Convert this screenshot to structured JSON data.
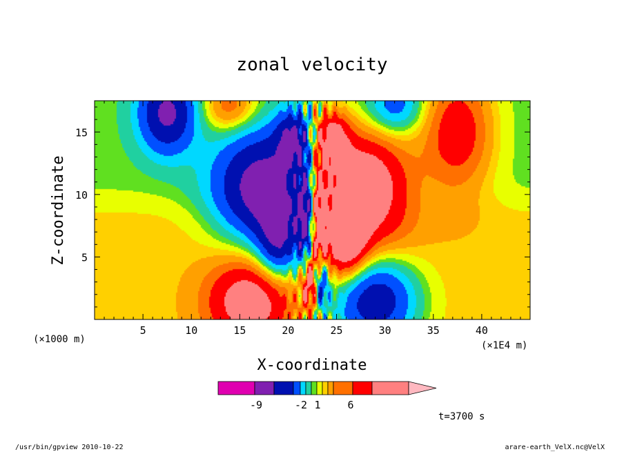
{
  "chart_data": {
    "type": "heatmap",
    "title": "zonal velocity",
    "xlabel": "X-coordinate",
    "ylabel": "Z-coordinate",
    "x_unit_left": "(×1000 m)",
    "x_unit_right": "(×1E4 m)",
    "x_range": [
      0,
      45
    ],
    "y_range": [
      0,
      17.5
    ],
    "x_ticks": [
      "5",
      "10",
      "15",
      "20",
      "25",
      "30",
      "35",
      "40"
    ],
    "x_tick_values": [
      5,
      10,
      15,
      20,
      25,
      30,
      35,
      40
    ],
    "y_ticks": [
      "5",
      "10",
      "15"
    ],
    "y_tick_values": [
      5,
      10,
      15
    ],
    "colorbar_labels": [
      "-9",
      "-2",
      "1",
      "6"
    ],
    "colorbar_colors": [
      "#e000b0",
      "#8020b0",
      "#0010b0",
      "#0050ff",
      "#00d8ff",
      "#20d0a0",
      "#60e020",
      "#e8ff00",
      "#ffd000",
      "#ffa000",
      "#ff7000",
      "#ff0000",
      "#ff8080",
      "#ffb8c0"
    ],
    "background_color": "#e8ff00",
    "fields": [
      {
        "cx": 7.5,
        "cz": 16.5,
        "sx": 2.0,
        "sz": 2.2,
        "amp": -6
      },
      {
        "cx": 37.5,
        "cz": 15.0,
        "sx": 2.6,
        "sz": 3.5,
        "amp": 4
      },
      {
        "cx": 17.5,
        "cz": 10.5,
        "sx": 3.5,
        "sz": 3.2,
        "amp": -7
      },
      {
        "cx": 27.5,
        "cz": 10.5,
        "sx": 3.5,
        "sz": 3.2,
        "amp": 7
      },
      {
        "cx": 16.0,
        "cz": 1.5,
        "sx": 3.0,
        "sz": 2.4,
        "amp": 5
      },
      {
        "cx": 29.0,
        "cz": 1.5,
        "sx": 3.0,
        "sz": 2.4,
        "amp": -6
      },
      {
        "cx": 14.0,
        "cz": 17.0,
        "sx": 2.0,
        "sz": 1.5,
        "amp": 3
      },
      {
        "cx": 31.0,
        "cz": 17.0,
        "sx": 2.0,
        "sz": 1.5,
        "amp": -3
      },
      {
        "cx": 20.5,
        "cz": 14.5,
        "sx": 1.2,
        "sz": 1.5,
        "amp": -5
      },
      {
        "cx": 24.5,
        "cz": 14.5,
        "sx": 1.2,
        "sz": 1.5,
        "amp": 5
      },
      {
        "cx": 19.0,
        "cz": 6.0,
        "sx": 1.5,
        "sz": 2.0,
        "amp": -5
      },
      {
        "cx": 26.0,
        "cz": 6.0,
        "sx": 1.5,
        "sz": 2.0,
        "amp": 5
      },
      {
        "cx": 22.0,
        "cz": 8.0,
        "sx": 0.7,
        "sz": 3.0,
        "amp": -7
      },
      {
        "cx": 23.0,
        "cz": 8.0,
        "sx": 0.7,
        "sz": 3.0,
        "amp": 7
      },
      {
        "cx": 22.3,
        "cz": 3.0,
        "sx": 0.6,
        "sz": 1.5,
        "amp": 6
      },
      {
        "cx": 23.3,
        "cz": 3.0,
        "sx": 0.6,
        "sz": 1.5,
        "amp": -6
      }
    ],
    "levels": [
      -6,
      -4,
      -2.5,
      -1.6,
      -0.8,
      -0.3,
      0.3,
      0.8,
      1.6,
      2.5,
      4
    ]
  },
  "annotation": "t=3700 s",
  "footer": {
    "left": "/usr/bin/gpview  2010-10-22",
    "right": "arare-earth_VelX.nc@VelX"
  }
}
